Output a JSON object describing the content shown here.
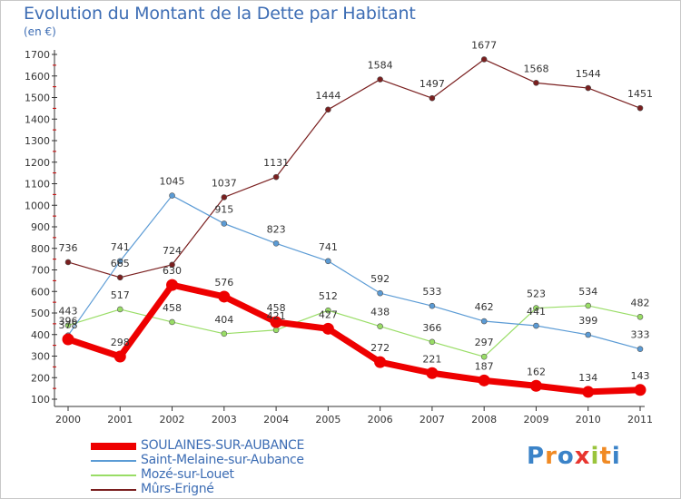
{
  "title": "Evolution du Montant de la Dette par Habitant",
  "unit": "(en €)",
  "brand": {
    "letters": [
      "P",
      "r",
      "o",
      "x",
      "i",
      "t",
      "i"
    ],
    "colors": [
      "#3b83c8",
      "#f08a24",
      "#3b83c8",
      "#e8352f",
      "#9ac43c",
      "#f08a24",
      "#3b83c8"
    ]
  },
  "chart_data": {
    "type": "line",
    "title": "Evolution du Montant de la Dette par Habitant",
    "ylabel": "(en €)",
    "x": [
      "2000",
      "2001",
      "2002",
      "2003",
      "2004",
      "2005",
      "2006",
      "2007",
      "2008",
      "2009",
      "2010",
      "2011"
    ],
    "ylim": [
      100,
      1700
    ],
    "yticks": [
      100,
      200,
      300,
      400,
      500,
      600,
      700,
      800,
      900,
      1000,
      1100,
      1200,
      1300,
      1400,
      1500,
      1600,
      1700
    ],
    "grid": false,
    "legend_position": "bottom-left",
    "series": [
      {
        "name": "SOULAINES-SUR-AUBANCE",
        "color": "#ee0000",
        "width": 7,
        "marker": 6.5,
        "values": [
          378,
          298,
          630,
          576,
          458,
          427,
          272,
          221,
          187,
          162,
          134,
          143
        ],
        "labels": [
          "378",
          "298",
          "630",
          "576",
          "458",
          "427",
          "272",
          "221",
          "187",
          "162",
          "134",
          "143"
        ]
      },
      {
        "name": "Saint-Melaine-sur-Aubance",
        "color": "#5b9bd5",
        "width": 1.2,
        "marker": 3,
        "values": [
          396,
          741,
          1045,
          915,
          823,
          741,
          592,
          533,
          462,
          441,
          399,
          333
        ],
        "labels": [
          "396",
          "741",
          "1045",
          "915",
          "823",
          "741",
          "592",
          "533",
          "462",
          "441",
          "399",
          "333"
        ]
      },
      {
        "name": "Mozé-sur-Louet",
        "color": "#99dd66",
        "width": 1.2,
        "marker": 3,
        "values": [
          443,
          517,
          458,
          404,
          421,
          512,
          438,
          366,
          297,
          523,
          534,
          482
        ],
        "labels": [
          "443",
          "517",
          "458",
          "404",
          "421",
          "512",
          "438",
          "366",
          "297",
          "523",
          "534",
          "482"
        ]
      },
      {
        "name": "Mûrs-Erigné",
        "color": "#7a1f1f",
        "width": 1.2,
        "marker": 3,
        "values": [
          736,
          665,
          724,
          1037,
          1131,
          1444,
          1584,
          1497,
          1677,
          1568,
          1544,
          1451
        ],
        "labels": [
          "736",
          "665",
          "724",
          "1037",
          "1131",
          "1444",
          "1584",
          "1497",
          "1677",
          "1568",
          "1544",
          "1451"
        ]
      }
    ]
  }
}
